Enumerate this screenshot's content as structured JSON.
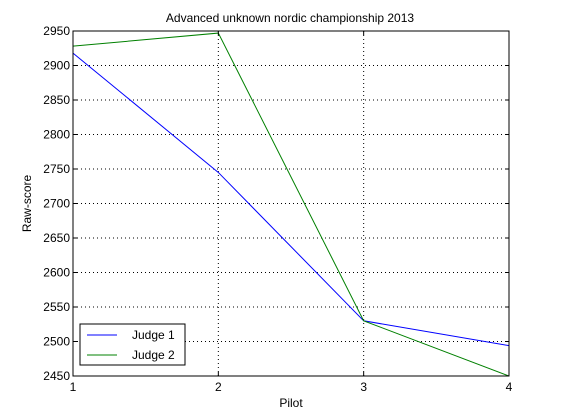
{
  "chart_data": {
    "type": "line",
    "title": "Advanced unknown nordic championship 2013",
    "xlabel": "Pilot",
    "ylabel": "Raw-score",
    "x": [
      1,
      2,
      3,
      4
    ],
    "xlim": [
      1,
      4
    ],
    "ylim": [
      2450,
      2950
    ],
    "xticks": [
      1,
      2,
      3,
      4
    ],
    "yticks": [
      2450,
      2500,
      2550,
      2600,
      2650,
      2700,
      2750,
      2800,
      2850,
      2900,
      2950
    ],
    "grid": true,
    "legend_position": "bottom-left",
    "series": [
      {
        "name": "Judge 1",
        "color": "#0000ff",
        "values": [
          2918,
          2745,
          2530,
          2494
        ]
      },
      {
        "name": "Judge 2",
        "color": "#008000",
        "values": [
          2928,
          2947,
          2530,
          2450
        ]
      }
    ]
  }
}
